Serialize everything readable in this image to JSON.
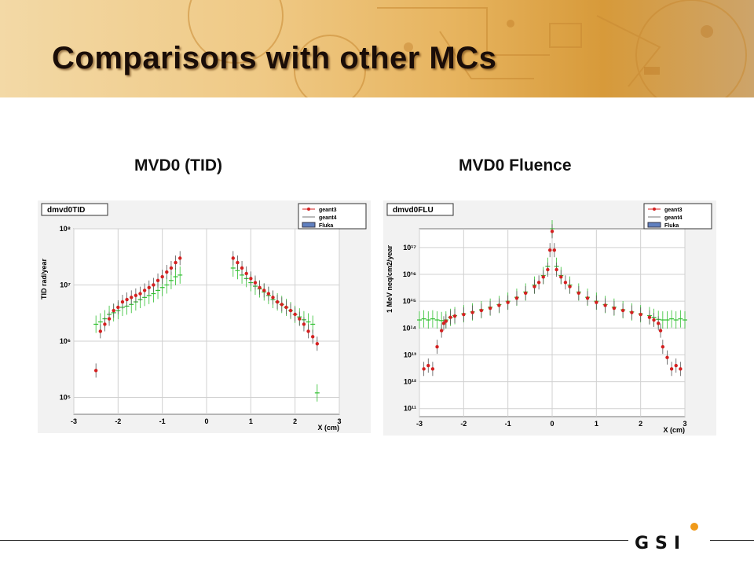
{
  "slide": {
    "title": "Comparisons with other MCs",
    "logo_text": "GSI"
  },
  "panels": [
    {
      "title": "MVD0 (TID)"
    },
    {
      "title": "MVD0 Fluence"
    }
  ],
  "chart_data": [
    {
      "type": "scatter",
      "title": "dmvd0TID",
      "xlabel": "X (cm)",
      "ylabel": "TID rad/year",
      "xlim": [
        -3,
        3
      ],
      "ylim": [
        50000,
        100000000
      ],
      "yscale": "log",
      "grid": true,
      "legend_position": "top-right",
      "x_ticks": [
        -3,
        -2,
        -1,
        0,
        1,
        2,
        3
      ],
      "x_tick_labels": [
        "-3",
        "-2",
        "-1",
        "0",
        "1",
        "2",
        "3"
      ],
      "y_ticks": [
        100000,
        1000000,
        10000000,
        100000000
      ],
      "y_tick_labels": [
        "10⁵",
        "10⁶",
        "10⁷",
        "10⁸"
      ],
      "colors": {
        "geant3": "#d42020",
        "geant4": "#2fbf2f",
        "Fluka": "#6080c0",
        "errorbar": "#555555"
      },
      "series": [
        {
          "name": "geant3",
          "marker": "dot",
          "x": [
            -2.5,
            -2.4,
            -2.3,
            -2.2,
            -2.1,
            -2.0,
            -1.9,
            -1.8,
            -1.7,
            -1.6,
            -1.5,
            -1.4,
            -1.3,
            -1.2,
            -1.1,
            -1.0,
            -0.9,
            -0.8,
            -0.7,
            -0.6,
            0.6,
            0.7,
            0.8,
            0.9,
            1.0,
            1.1,
            1.2,
            1.3,
            1.4,
            1.5,
            1.6,
            1.7,
            1.8,
            1.9,
            2.0,
            2.1,
            2.2,
            2.3,
            2.4,
            2.5
          ],
          "y": [
            300000,
            1500000,
            2000000,
            2500000,
            3500000,
            4000000,
            5000000,
            5500000,
            6000000,
            6500000,
            7000000,
            8000000,
            9000000,
            10000000,
            12000000,
            14000000,
            17000000,
            20000000,
            25000000,
            30000000,
            30000000,
            25000000,
            20000000,
            16000000,
            13000000,
            11000000,
            9000000,
            8000000,
            7000000,
            6000000,
            5000000,
            4500000,
            4000000,
            3500000,
            3000000,
            2500000,
            2000000,
            1500000,
            1200000,
            900000
          ]
        },
        {
          "name": "geant4",
          "marker": "line",
          "x": [
            -2.5,
            -2.4,
            -2.3,
            -2.2,
            -2.1,
            -2.0,
            -1.9,
            -1.8,
            -1.7,
            -1.6,
            -1.5,
            -1.4,
            -1.3,
            -1.2,
            -1.1,
            -1.0,
            -0.9,
            -0.8,
            -0.7,
            -0.6,
            0.6,
            0.7,
            0.8,
            0.9,
            1.0,
            1.1,
            1.2,
            1.3,
            1.4,
            1.5,
            1.6,
            1.7,
            1.8,
            1.9,
            2.0,
            2.1,
            2.2,
            2.3,
            2.4,
            2.5
          ],
          "y": [
            2000000,
            2200000,
            2500000,
            3000000,
            3200000,
            3500000,
            4000000,
            4200000,
            4500000,
            5000000,
            5500000,
            6000000,
            6500000,
            7000000,
            8000000,
            9000000,
            10000000,
            12000000,
            14000000,
            15000000,
            20000000,
            18000000,
            15000000,
            13000000,
            11000000,
            9500000,
            8500000,
            7500000,
            6500000,
            5500000,
            5000000,
            4500000,
            4000000,
            3500000,
            3000000,
            2700000,
            2400000,
            2200000,
            2000000,
            120000
          ]
        },
        {
          "name": "Fluka",
          "marker": "band",
          "x": [],
          "y": []
        }
      ]
    },
    {
      "type": "scatter",
      "title": "dmvd0FLU",
      "xlabel": "X (cm)",
      "ylabel": "1 MeV neq/cm2/year",
      "xlim": [
        -3,
        3
      ],
      "ylim": [
        50000000000,
        500000000000000000
      ],
      "yscale": "log",
      "grid": true,
      "legend_position": "top-right",
      "x_ticks": [
        -3,
        -2,
        -1,
        0,
        1,
        2,
        3
      ],
      "x_tick_labels": [
        "-3",
        "-2",
        "-1",
        "0",
        "1",
        "2",
        "3"
      ],
      "y_ticks": [
        100000000000,
        1000000000000,
        10000000000000,
        100000000000000,
        1000000000000000,
        10000000000000000,
        100000000000000000
      ],
      "y_tick_labels": [
        "10¹¹",
        "10¹²",
        "10¹³",
        "10¹⁴",
        "10¹⁵",
        "10¹⁶",
        "10¹⁷"
      ],
      "colors": {
        "geant3": "#d42020",
        "geant4": "#2fbf2f",
        "Fluka": "#6080c0",
        "errorbar": "#555555"
      },
      "series": [
        {
          "name": "geant3",
          "marker": "dot",
          "x": [
            -2.9,
            -2.8,
            -2.7,
            -2.6,
            -2.5,
            -2.45,
            -2.4,
            -2.3,
            -2.2,
            -2.0,
            -1.8,
            -1.6,
            -1.4,
            -1.2,
            -1.0,
            -0.8,
            -0.6,
            -0.4,
            -0.3,
            -0.2,
            -0.1,
            -0.05,
            0.0,
            0.05,
            0.1,
            0.2,
            0.3,
            0.4,
            0.6,
            0.8,
            1.0,
            1.2,
            1.4,
            1.6,
            1.8,
            2.0,
            2.2,
            2.3,
            2.4,
            2.45,
            2.5,
            2.6,
            2.7,
            2.8,
            2.9
          ],
          "y": [
            3000000000000,
            4000000000000,
            3000000000000,
            20000000000000,
            80000000000000,
            150000000000000,
            180000000000000,
            250000000000000,
            280000000000000,
            320000000000000,
            380000000000000,
            450000000000000,
            550000000000000,
            700000000000000,
            900000000000000,
            1300000000000000,
            2000000000000000,
            3500000000000000,
            5000000000000000,
            8000000000000000,
            15000000000000000,
            80000000000000000,
            400000000000000000,
            80000000000000000,
            15000000000000000,
            8000000000000000,
            5000000000000000,
            3500000000000000,
            2000000000000000,
            1300000000000000,
            900000000000000,
            700000000000000,
            550000000000000,
            450000000000000,
            380000000000000,
            320000000000000,
            250000000000000,
            200000000000000,
            150000000000000,
            80000000000000,
            20000000000000,
            8000000000000,
            3000000000000,
            4000000000000,
            3000000000000
          ]
        },
        {
          "name": "geant4",
          "marker": "line",
          "x": [
            -3.0,
            -2.9,
            -2.8,
            -2.7,
            -2.6,
            -2.5,
            -2.4,
            -2.3,
            -2.2,
            -2.0,
            -1.8,
            -1.6,
            -1.4,
            -1.2,
            -1.0,
            -0.8,
            -0.6,
            -0.4,
            -0.2,
            -0.1,
            0.0,
            0.1,
            0.2,
            0.4,
            0.6,
            0.8,
            1.0,
            1.2,
            1.4,
            1.6,
            1.8,
            2.0,
            2.2,
            2.3,
            2.4,
            2.5,
            2.6,
            2.7,
            2.8,
            2.9,
            3.0
          ],
          "y": [
            200000000000000,
            220000000000000,
            200000000000000,
            220000000000000,
            200000000000000,
            190000000000000,
            200000000000000,
            250000000000000,
            290000000000000,
            340000000000000,
            400000000000000,
            480000000000000,
            600000000000000,
            750000000000000,
            1000000000000000,
            1400000000000000,
            2200000000000000,
            4000000000000000,
            9000000000000000,
            20000000000000000,
            500000000000000000,
            20000000000000000,
            9000000000000000,
            4000000000000000,
            2200000000000000,
            1400000000000000,
            1000000000000000,
            750000000000000,
            600000000000000,
            480000000000000,
            400000000000000,
            340000000000000,
            290000000000000,
            250000000000000,
            210000000000000,
            200000000000000,
            200000000000000,
            220000000000000,
            200000000000000,
            220000000000000,
            200000000000000
          ]
        },
        {
          "name": "Fluka",
          "marker": "band",
          "x": [],
          "y": []
        }
      ]
    }
  ]
}
